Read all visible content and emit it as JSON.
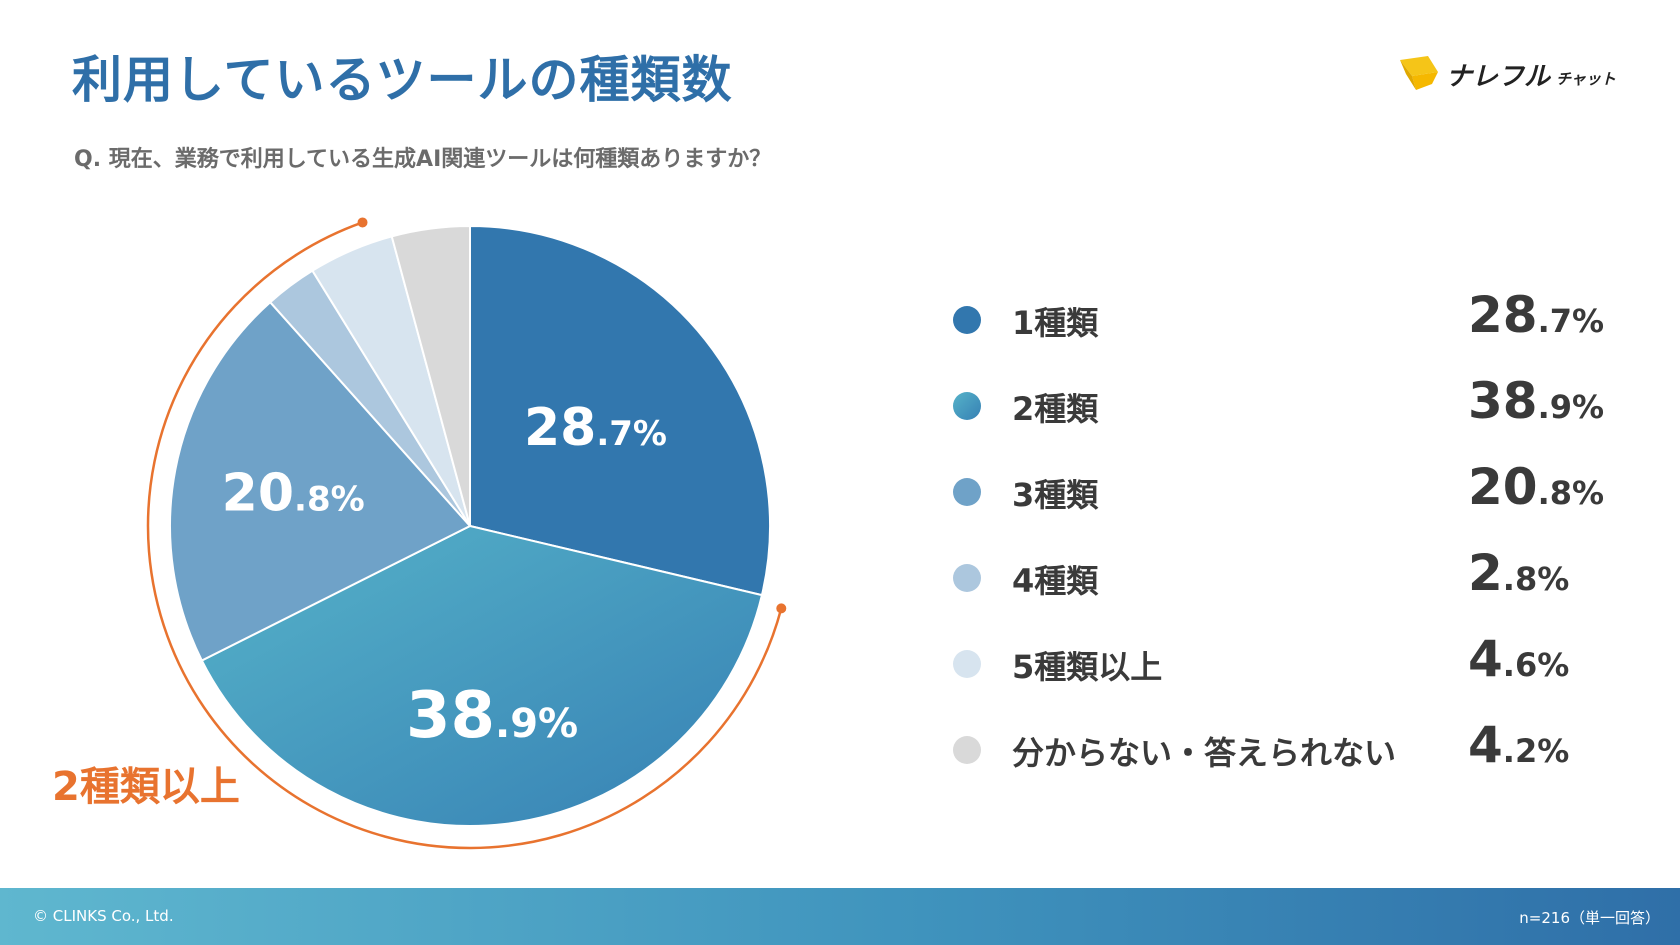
{
  "header": {
    "title": "利用しているツールの種類数",
    "question": "Q. 現在、業務で利用している生成AI関連ツールは何種類ありますか？",
    "brand_main": "ナレフル",
    "brand_sub": "チャット"
  },
  "colors": {
    "title": "#2f6fa8",
    "accent_orange": "#e8732f",
    "footer_start": "#5fb7cf",
    "footer_end": "#2f6fa8"
  },
  "chart_data": {
    "type": "pie",
    "title": "利用しているツールの種類数",
    "slices": [
      {
        "label": "1種類",
        "value": 28.7,
        "int": "28",
        "dec": ".7%",
        "color": "#3277ae",
        "inside": true
      },
      {
        "label": "2種類",
        "value": 38.9,
        "int": "38",
        "dec": ".9%",
        "color": "#4a9fc3",
        "inside": true
      },
      {
        "label": "3種類",
        "value": 20.8,
        "int": "20",
        "dec": ".8%",
        "color": "#6fa2c8",
        "inside": true
      },
      {
        "label": "4種類",
        "value": 2.8,
        "int": "2",
        "dec": ".8%",
        "color": "#acc7de",
        "inside": false
      },
      {
        "label": "5種類以上",
        "value": 4.6,
        "int": "4",
        "dec": ".6%",
        "color": "#d7e4ef",
        "inside": false
      },
      {
        "label": "分からない・答えられない",
        "value": 4.2,
        "int": "4",
        "dec": ".2%",
        "color": "#d9d9d9",
        "inside": false
      }
    ],
    "bracket_label": "2種類以上",
    "start": "top",
    "direction": "clockwise"
  },
  "footer": {
    "copyright": "© CLINKS Co., Ltd.",
    "sample": "n=216（単一回答）"
  }
}
